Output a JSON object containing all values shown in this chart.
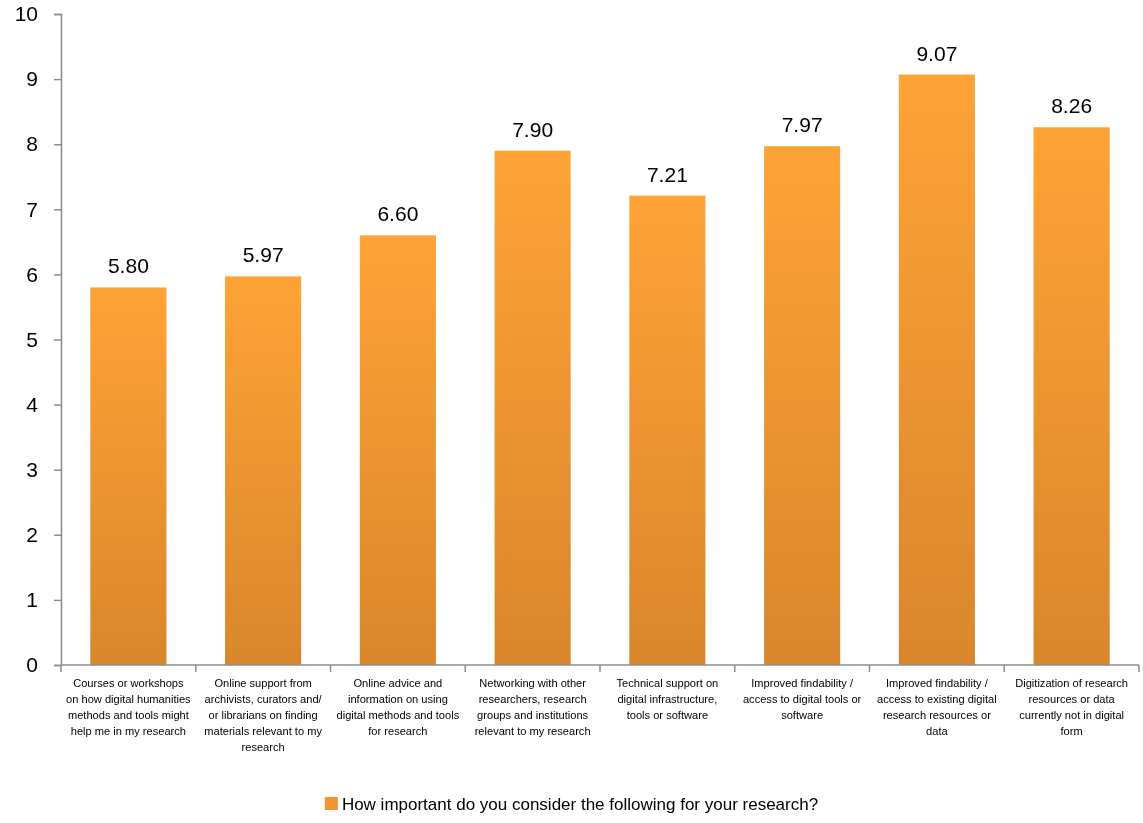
{
  "chart_data": {
    "type": "bar",
    "categories": [
      "Courses or workshops on how digital humanities methods and tools might help me in my research",
      "Online support from archivists, curators and/ or librarians on finding materials relevant to my research",
      "Online advice and information on using digital methods and tools for research",
      "Networking with other researchers, research groups and institutions relevant to my research",
      "Technical support on digital infrastructure, tools or software",
      "Improved findability / access to digital tools or software",
      "Improved findability / access to existing digital research resources or data",
      "Digitization of research resources or data currently not in digital form"
    ],
    "series": [
      {
        "name": "How important do you consider the following for your research?",
        "color": "#f19531",
        "values": [
          5.8,
          5.97,
          6.6,
          7.9,
          7.21,
          7.97,
          9.07,
          8.26
        ]
      }
    ],
    "value_labels": [
      "5.80",
      "5.97",
      "6.60",
      "7.90",
      "7.21",
      "7.97",
      "9.07",
      "8.26"
    ],
    "ylim": [
      0,
      10
    ],
    "yticks": [
      0,
      1,
      2,
      3,
      4,
      5,
      6,
      7,
      8,
      9,
      10
    ],
    "grid": false,
    "legend": "bottom"
  }
}
